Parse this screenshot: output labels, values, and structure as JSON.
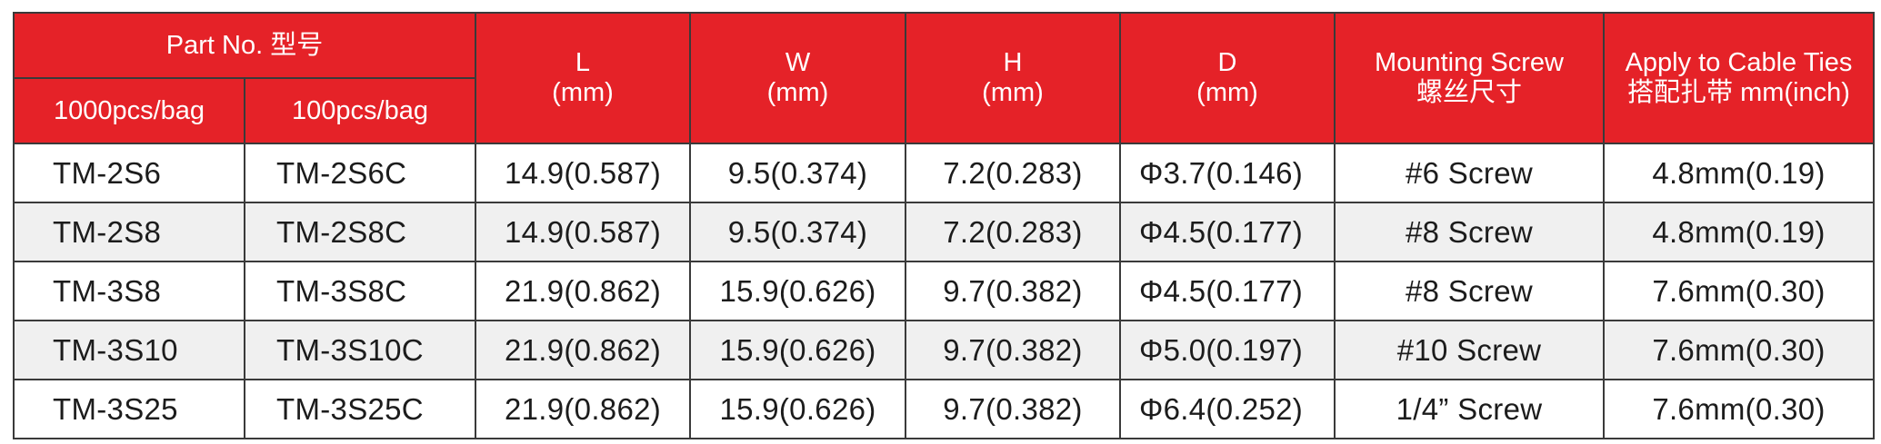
{
  "colors": {
    "header_bg": "#e52228",
    "header_text": "#ffffff",
    "row_alt_bg": "#f0f0f0",
    "border": "#3a3a3a"
  },
  "header": {
    "part_no": "Part No. 型号",
    "pack_1000": "1000pcs/bag",
    "pack_100": "100pcs/bag",
    "L": {
      "name": "L",
      "unit": "(mm)"
    },
    "W": {
      "name": "W",
      "unit": "(mm)"
    },
    "H": {
      "name": "H",
      "unit": "(mm)"
    },
    "D": {
      "name": "D",
      "unit": "(mm)"
    },
    "screw": {
      "name": "Mounting Screw",
      "sub": "螺丝尺寸"
    },
    "apply": {
      "name": "Apply to Cable Ties",
      "sub": "搭配扎带 mm(inch)"
    }
  },
  "rows": [
    {
      "p1000": "TM-2S6",
      "p100": "TM-2S6C",
      "L": "14.9(0.587)",
      "W": "9.5(0.374)",
      "H": "7.2(0.283)",
      "D": "Φ3.7(0.146)",
      "screw": "#6 Screw",
      "apply": "4.8mm(0.19)"
    },
    {
      "p1000": "TM-2S8",
      "p100": "TM-2S8C",
      "L": "14.9(0.587)",
      "W": "9.5(0.374)",
      "H": "7.2(0.283)",
      "D": "Φ4.5(0.177)",
      "screw": "#8 Screw",
      "apply": "4.8mm(0.19)"
    },
    {
      "p1000": "TM-3S8",
      "p100": "TM-3S8C",
      "L": "21.9(0.862)",
      "W": "15.9(0.626)",
      "H": "9.7(0.382)",
      "D": "Φ4.5(0.177)",
      "screw": "#8 Screw",
      "apply": "7.6mm(0.30)"
    },
    {
      "p1000": "TM-3S10",
      "p100": "TM-3S10C",
      "L": "21.9(0.862)",
      "W": "15.9(0.626)",
      "H": "9.7(0.382)",
      "D": "Φ5.0(0.197)",
      "screw": "#10 Screw",
      "apply": "7.6mm(0.30)"
    },
    {
      "p1000": "TM-3S25",
      "p100": "TM-3S25C",
      "L": "21.9(0.862)",
      "W": "15.9(0.626)",
      "H": "9.7(0.382)",
      "D": "Φ6.4(0.252)",
      "screw": "1/4”  Screw",
      "apply": "7.6mm(0.30)"
    }
  ]
}
